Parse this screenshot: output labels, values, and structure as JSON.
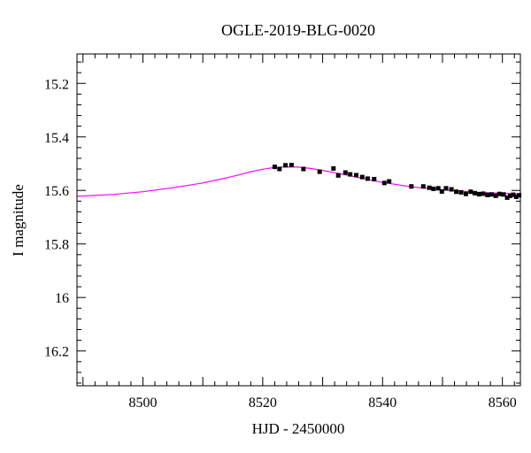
{
  "chart_data": {
    "type": "scatter",
    "title": "OGLE-2019-BLG-0020",
    "xlabel": "HJD - 2450000",
    "ylabel": "I magnitude",
    "xlim": [
      8489,
      8563
    ],
    "ylim": [
      16.33,
      15.09
    ],
    "y_inverted": true,
    "grid": false,
    "x_ticks": [
      {
        "value": 8500,
        "label": "8500"
      },
      {
        "value": 8520,
        "label": "8520"
      },
      {
        "value": 8540,
        "label": "8540"
      },
      {
        "value": 8560,
        "label": "8560"
      }
    ],
    "y_ticks": [
      {
        "value": 15.2,
        "label": "15.2"
      },
      {
        "value": 15.4,
        "label": "15.4"
      },
      {
        "value": 15.6,
        "label": "15.6"
      },
      {
        "value": 15.8,
        "label": "15.8"
      },
      {
        "value": 16.0,
        "label": "16"
      },
      {
        "value": 16.2,
        "label": "16.2"
      }
    ],
    "points": {
      "color": "#000000",
      "x": [
        8522.0,
        8522.8,
        8523.8,
        8524.8,
        8526.8,
        8529.5,
        8531.8,
        8532.6,
        8533.8,
        8534.6,
        8535.6,
        8536.6,
        8537.5,
        8538.6,
        8540.3,
        8541.1,
        8544.8,
        8546.8,
        8547.8,
        8548.5,
        8549.3,
        8549.9,
        8550.6,
        8551.5,
        8552.3,
        8553.1,
        8553.9,
        8554.7,
        8555.4,
        8556.1,
        8556.8,
        8557.5,
        8558.2,
        8558.9,
        8559.5,
        8560.2,
        8560.8,
        8561.3,
        8561.8,
        8562.3,
        8562.8
      ],
      "y": [
        15.512,
        15.52,
        15.506,
        15.505,
        15.52,
        15.53,
        15.518,
        15.544,
        15.533,
        15.54,
        15.543,
        15.55,
        15.556,
        15.558,
        15.572,
        15.566,
        15.585,
        15.585,
        15.59,
        15.594,
        15.592,
        15.604,
        15.592,
        15.596,
        15.605,
        15.607,
        15.613,
        15.605,
        15.61,
        15.614,
        15.612,
        15.617,
        15.615,
        15.62,
        15.613,
        15.615,
        15.627,
        15.62,
        15.616,
        15.624,
        15.618
      ]
    },
    "model": {
      "color": "#ff00ff",
      "x": [
        8489,
        8495,
        8500,
        8505,
        8510,
        8513,
        8516,
        8518,
        8520,
        8522,
        8524,
        8526,
        8528,
        8530,
        8533,
        8536,
        8540,
        8545,
        8550,
        8555,
        8560,
        8563
      ],
      "y": [
        15.622,
        15.615,
        15.605,
        15.59,
        15.572,
        15.558,
        15.542,
        15.53,
        15.521,
        15.514,
        15.512,
        15.513,
        15.518,
        15.525,
        15.538,
        15.552,
        15.57,
        15.587,
        15.598,
        15.606,
        15.611,
        15.613
      ]
    }
  }
}
